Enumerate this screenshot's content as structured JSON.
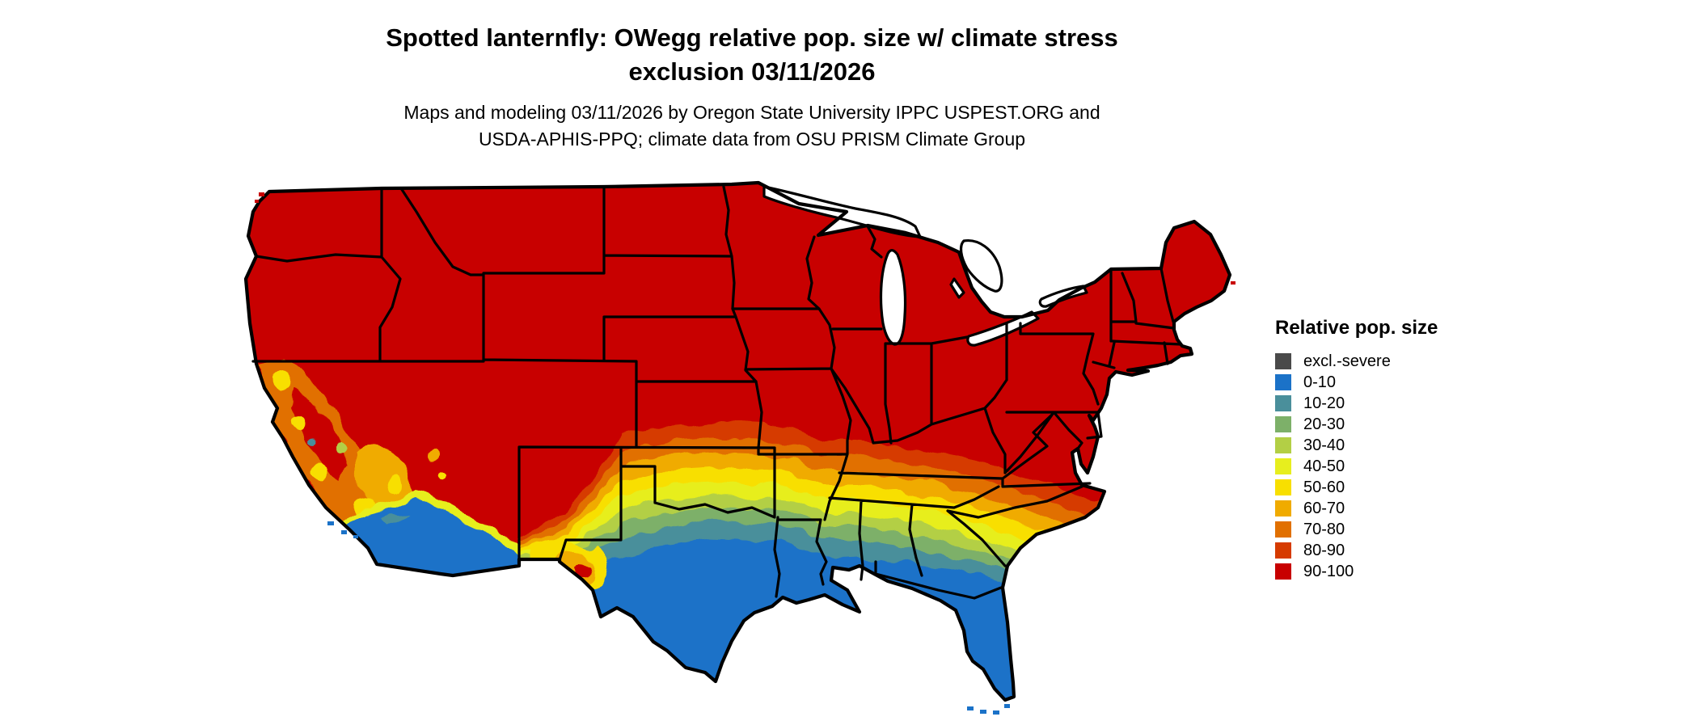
{
  "title": {
    "line1": "Spotted lanternfly: OWegg relative pop. size w/ climate stress",
    "line2": "exclusion 03/11/2026"
  },
  "subtitle": {
    "line1": "Maps and modeling 03/11/2026 by Oregon State University IPPC USPEST.ORG and",
    "line2": "USDA-APHIS-PPQ; climate data from OSU PRISM Climate Group"
  },
  "legend": {
    "title": "Relative pop. size",
    "items": [
      {
        "label": "excl.-severe",
        "color": "#4a4a4a"
      },
      {
        "label": "0-10",
        "color": "#1b72c8"
      },
      {
        "label": "10-20",
        "color": "#4a8f9b"
      },
      {
        "label": "20-30",
        "color": "#7db069"
      },
      {
        "label": "30-40",
        "color": "#b3cf45"
      },
      {
        "label": "40-50",
        "color": "#e7ee1e"
      },
      {
        "label": "50-60",
        "color": "#f8df00"
      },
      {
        "label": "60-70",
        "color": "#f0ab00"
      },
      {
        "label": "70-80",
        "color": "#e17000"
      },
      {
        "label": "80-90",
        "color": "#d63b00"
      },
      {
        "label": "90-100",
        "color": "#c80000"
      }
    ]
  },
  "map": {
    "palette": {
      "excl_severe": "#4a4a4a",
      "b0_10": "#1b72c8",
      "b10_20": "#4a8f9b",
      "b20_30": "#7db069",
      "b30_40": "#b3cf45",
      "b40_50": "#e7ee1e",
      "b50_60": "#f8df00",
      "b60_70": "#f0ab00",
      "b70_80": "#e17000",
      "b80_90": "#d63b00",
      "b90_100": "#c80000",
      "water": "#ffffff"
    }
  }
}
